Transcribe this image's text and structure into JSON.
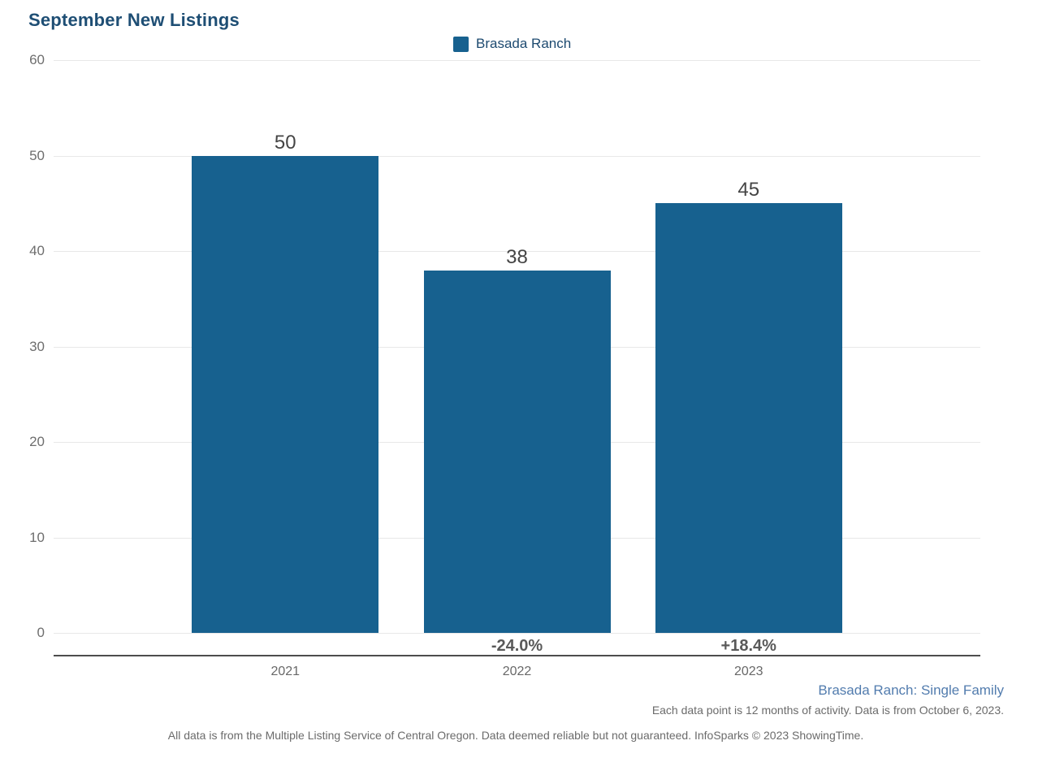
{
  "title": "September New Listings",
  "legend": {
    "label": "Brasada Ranch",
    "swatch_color": "#17618f"
  },
  "chart_data": {
    "type": "bar",
    "title": "September New Listings",
    "series_name": "Brasada Ranch",
    "categories": [
      "2021",
      "2022",
      "2023"
    ],
    "values": [
      50,
      38,
      45
    ],
    "value_labels": [
      "50",
      "38",
      "45"
    ],
    "change_labels": [
      "",
      "-24.0%",
      "+18.4%"
    ],
    "xlabel": "",
    "ylabel": "",
    "ylim": [
      0,
      60
    ],
    "yticks": [
      0,
      10,
      20,
      30,
      40,
      50,
      60
    ],
    "grid": true,
    "legend_position": "top-center",
    "bar_color": "#17618f"
  },
  "footnotes": {
    "series_note": "Brasada Ranch: Single Family",
    "data_note": "Each data point is 12 months of activity. Data is from October 6, 2023.",
    "disclaimer": "All data is from the Multiple Listing Service of Central Oregon. Data deemed reliable but not guaranteed. InfoSparks © 2023 ShowingTime."
  },
  "colors": {
    "title": "#1e4e74",
    "bar": "#17618f",
    "gridline": "#e8e8e8",
    "axis_line": "#4d4d4d",
    "tick_text": "#6e6e6e",
    "value_text": "#444444",
    "pct_text": "#595959",
    "series_note_text": "#527cae",
    "footnote_text": "#6b6b6b"
  }
}
